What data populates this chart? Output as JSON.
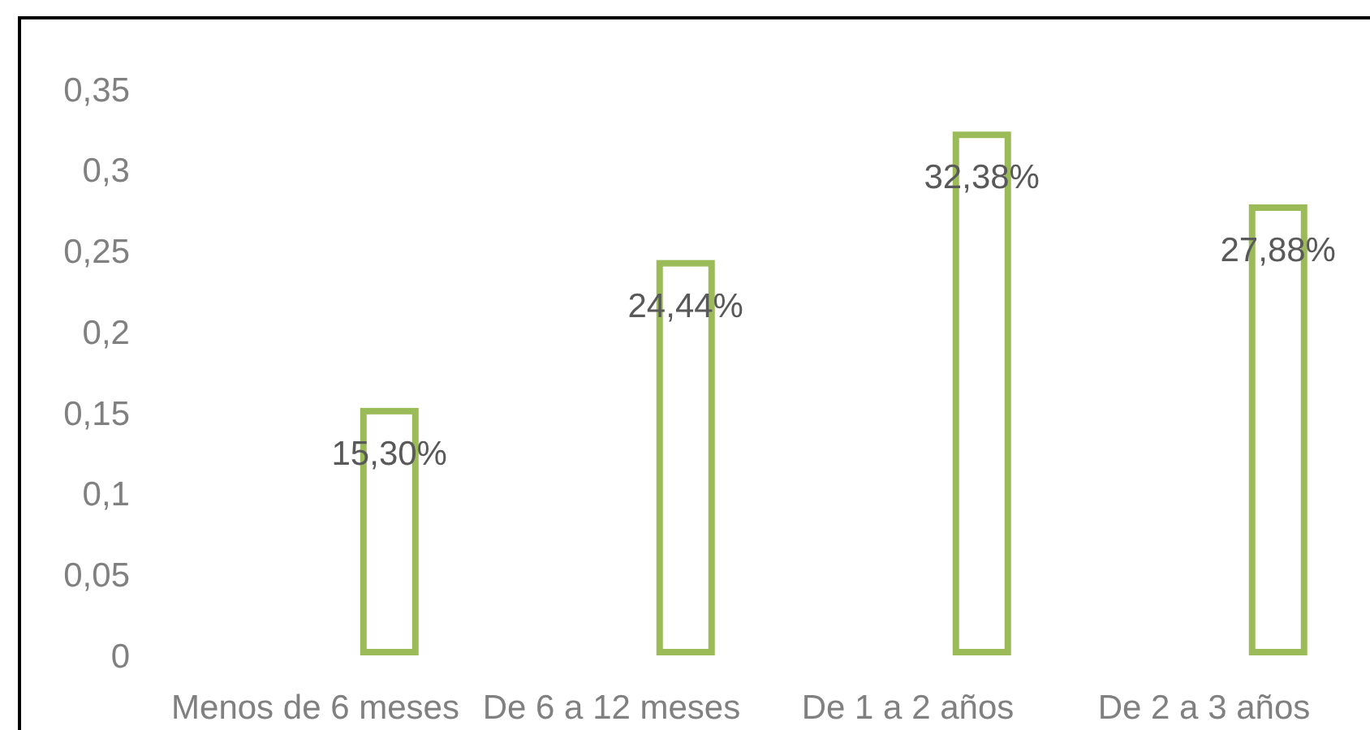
{
  "chart_data": {
    "type": "bar",
    "categories": [
      "Menos de 6 meses",
      "De 6 a 12 meses",
      "De 1 a 2 años",
      "De 2 a 3 años"
    ],
    "values": [
      0.153,
      0.2444,
      0.3238,
      0.2788
    ],
    "value_labels": [
      "15,30%",
      "24,44%",
      "32,38%",
      "27,88%"
    ],
    "color": "#9bbb59",
    "ylim": [
      0,
      0.35
    ],
    "yticks": [
      0,
      {
        "value": 0.05,
        "label": "0,05"
      },
      {
        "value": 0.1,
        "label": "0,1"
      },
      {
        "value": 0.15,
        "label": "0,15"
      },
      {
        "value": 0.2,
        "label": "0,2"
      },
      {
        "value": 0.25,
        "label": "0,25"
      },
      {
        "value": 0.3,
        "label": "0,3"
      },
      {
        "value": 0.35,
        "label": "0,35"
      }
    ]
  }
}
